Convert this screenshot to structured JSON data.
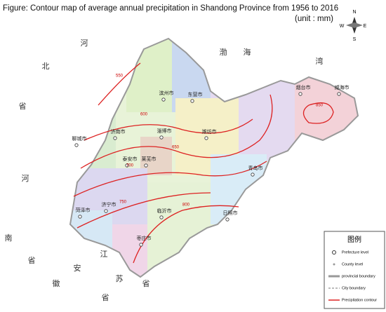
{
  "title": "Figure: Contour map of average annual precipitation in Shandong Province from 1956 to 2016",
  "unit": "(unit : mm)",
  "compass": {
    "n": "N",
    "s": "S",
    "e": "E",
    "w": "W"
  },
  "regions": [
    "河",
    "北",
    "省",
    "河",
    "南",
    "省",
    "江",
    "苏",
    "省",
    "安",
    "徽",
    "省",
    "渤",
    "海",
    "湾"
  ],
  "cities": [
    "滨州市",
    "东营市",
    "烟台市",
    "威海市",
    "聊城市",
    "济南市",
    "淄博市",
    "潍坊市",
    "泰安市",
    "莱芜市",
    "青岛市",
    "日照市",
    "济宁市",
    "菏泽市",
    "临沂市",
    "枣庄市"
  ],
  "contours": [
    550,
    600,
    650,
    700,
    750,
    800,
    850
  ],
  "legend": {
    "title": "图例",
    "items": [
      "Prefecture level",
      "County level",
      "provincial boundary",
      "City boundary",
      "Precipitation contour"
    ]
  }
}
